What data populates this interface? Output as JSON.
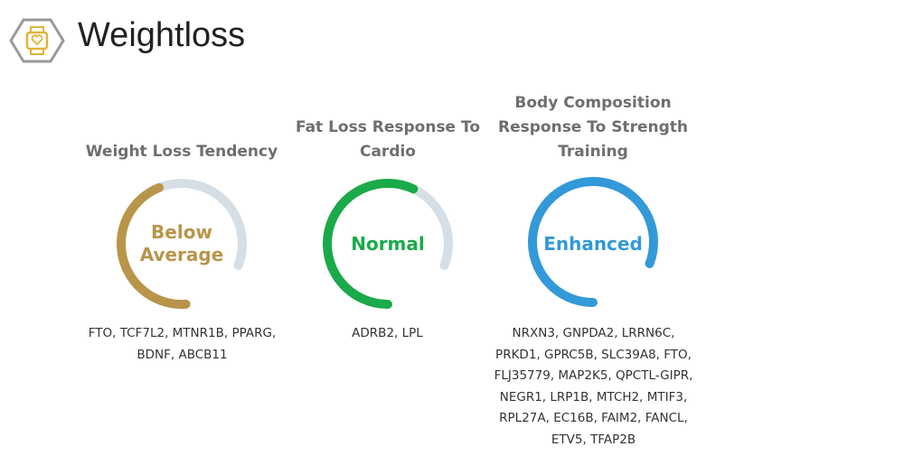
{
  "header": {
    "title": "Weightloss"
  },
  "cards": [
    {
      "title": "Weight Loss Tendency",
      "result": "Below Average",
      "genes": "FTO, TCF7L2, MTNR1B, PPARG, BDNF, ABCB11"
    },
    {
      "title": "Fat Loss Response To Cardio",
      "result": "Normal",
      "genes": "ADRB2, LPL"
    },
    {
      "title": "Body Composition Response To Strength Training",
      "result": "Enhanced",
      "genes": "NRXN3, GNPDA2, LRRN6C, PRKD1, GPRC5B, SLC39A8, FTO, FLJ35779, MAP2K5, QPCTL-GIPR, NEGR1, LRP1B, MTCH2, MTIF3, RPL27A, EC16B, FAIM2, FANCL, ETV5, TFAP2B"
    }
  ]
}
